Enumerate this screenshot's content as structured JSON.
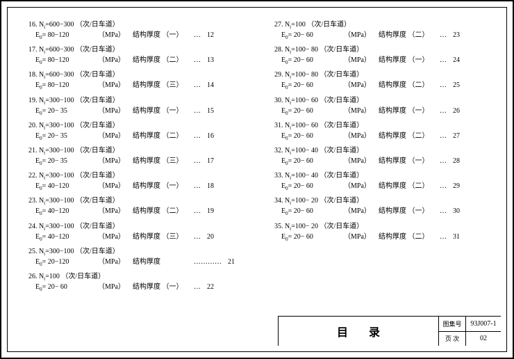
{
  "unit1": "（次/日车道）",
  "unit2": "（MPa）",
  "prefix": "结构厚度",
  "left": [
    {
      "n": "16",
      "nt": "600−300",
      "e0": "80−120",
      "p": "（一）",
      "d": "…",
      "pg": "12"
    },
    {
      "n": "17",
      "nt": "600−300",
      "e0": "80−120",
      "p": "（二）",
      "d": "…",
      "pg": "13"
    },
    {
      "n": "18",
      "nt": "600−300",
      "e0": "80−120",
      "p": "（三）",
      "d": "…",
      "pg": "14"
    },
    {
      "n": "19",
      "nt": "300−100",
      "e0": "20− 35",
      "p": "（一）",
      "d": "…",
      "pg": "15"
    },
    {
      "n": "20",
      "nt": "300−100",
      "e0": "20− 35",
      "p": "（二）",
      "d": "…",
      "pg": "16"
    },
    {
      "n": "21",
      "nt": "300−100",
      "e0": "20− 35",
      "p": "（三）",
      "d": "…",
      "pg": "17"
    },
    {
      "n": "22",
      "nt": "300−100",
      "e0": "40−120",
      "p": "（一）",
      "d": "…",
      "pg": "18"
    },
    {
      "n": "23",
      "nt": "300−100",
      "e0": "40−120",
      "p": "（二）",
      "d": "…",
      "pg": "19"
    },
    {
      "n": "24",
      "nt": "300−100",
      "e0": "40−120",
      "p": "（三）",
      "d": "…",
      "pg": "20"
    },
    {
      "n": "25",
      "nt": "300−100",
      "e0": "20−120",
      "p": "",
      "d": "…………",
      "pg": "21"
    },
    {
      "n": "26",
      "nt": "100",
      "e0": "20− 60",
      "p": "（一）",
      "d": "…",
      "pg": "22"
    }
  ],
  "right": [
    {
      "n": "27",
      "nt": "100",
      "e0": "20− 60",
      "p": "（二）",
      "d": "…",
      "pg": "23"
    },
    {
      "n": "28",
      "nt": "100− 80",
      "e0": "20− 60",
      "p": "（一）",
      "d": "…",
      "pg": "24"
    },
    {
      "n": "29",
      "nt": "100− 80",
      "e0": "20− 60",
      "p": "（二）",
      "d": "…",
      "pg": "25"
    },
    {
      "n": "30",
      "nt": "100− 60",
      "e0": "20− 60",
      "p": "（一）",
      "d": "…",
      "pg": "26"
    },
    {
      "n": "31",
      "nt": "100− 60",
      "e0": "20− 60",
      "p": "（二）",
      "d": "…",
      "pg": "27"
    },
    {
      "n": "32",
      "nt": "100− 40",
      "e0": "20− 60",
      "p": "（一）",
      "d": "…",
      "pg": "28"
    },
    {
      "n": "33",
      "nt": "100− 40",
      "e0": "20− 60",
      "p": "（二）",
      "d": "…",
      "pg": "29"
    },
    {
      "n": "34",
      "nt": "100− 20",
      "e0": "20− 60",
      "p": "（一）",
      "d": "…",
      "pg": "30"
    },
    {
      "n": "35",
      "nt": "100− 20",
      "e0": "20− 60",
      "p": "（二）",
      "d": "…",
      "pg": "31"
    }
  ],
  "title": "目录",
  "box_label1": "图集号",
  "box_val1": "93J007-1",
  "box_label2": "页 次",
  "box_val2": "02"
}
